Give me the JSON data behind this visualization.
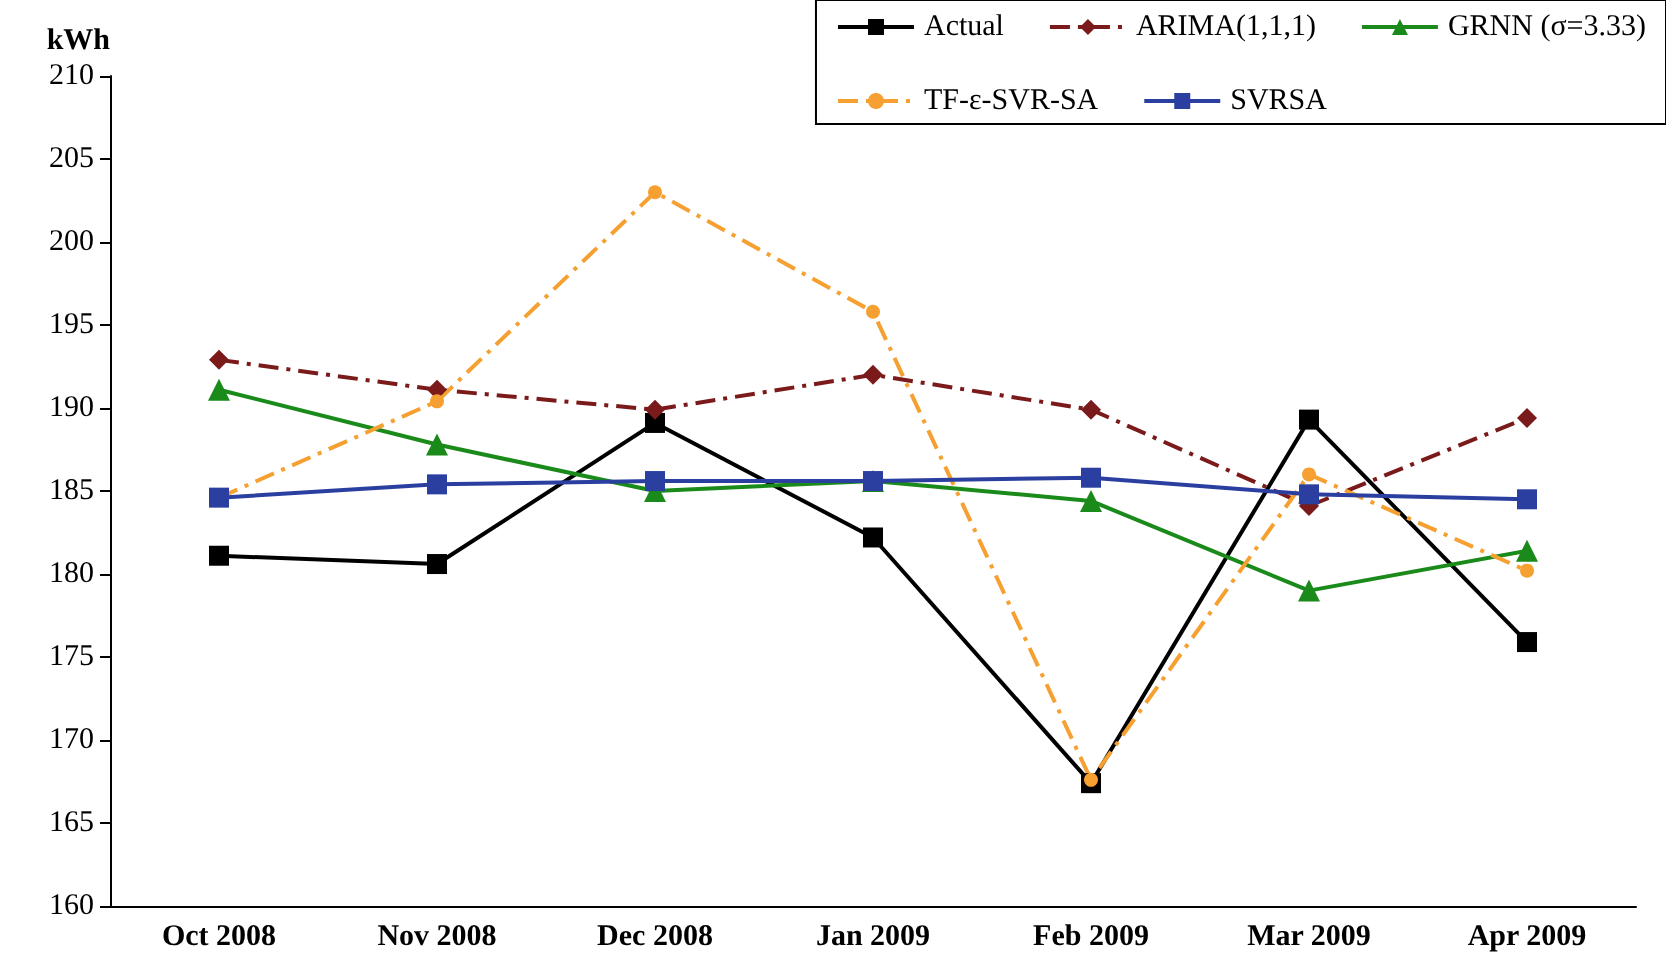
{
  "chart_data": {
    "type": "line",
    "ylabel": "kWh",
    "categories": [
      "Oct 2008",
      "Nov 2008",
      "Dec 2008",
      "Jan 2009",
      "Feb 2009",
      "Mar 2009",
      "Apr 2009"
    ],
    "series": [
      {
        "name": "Actual",
        "color": "#000000",
        "marker": "square",
        "line_style": "solid",
        "values": [
          181.1,
          180.6,
          189.1,
          182.2,
          167.4,
          189.3,
          175.9
        ]
      },
      {
        "name": "ARIMA(1,1,1)",
        "color": "#7b1a1a",
        "marker": "diamond",
        "line_style": "dashed",
        "values": [
          192.9,
          191.1,
          189.9,
          192.0,
          189.9,
          184.1,
          189.4
        ]
      },
      {
        "name": "GRNN (σ=3.33)",
        "color": "#1a8a1a",
        "marker": "triangle",
        "line_style": "solid",
        "values": [
          191.1,
          187.8,
          185.0,
          185.6,
          184.4,
          179.0,
          181.4
        ]
      },
      {
        "name": "TF-ε-SVR-SA",
        "color": "#f5a030",
        "marker": "circle",
        "line_style": "dashed",
        "values": [
          184.6,
          190.4,
          203.0,
          195.8,
          167.6,
          186.0,
          180.2
        ]
      },
      {
        "name": "SVRSA",
        "color": "#2b3fa0",
        "marker": "square",
        "line_style": "solid",
        "values": [
          184.6,
          185.4,
          185.6,
          185.6,
          185.8,
          184.8,
          184.5
        ]
      }
    ],
    "ylim": [
      160,
      210
    ],
    "yticks": [
      160,
      165,
      170,
      175,
      180,
      185,
      190,
      195,
      200,
      205,
      210
    ],
    "grid": false,
    "legend": "top right"
  }
}
